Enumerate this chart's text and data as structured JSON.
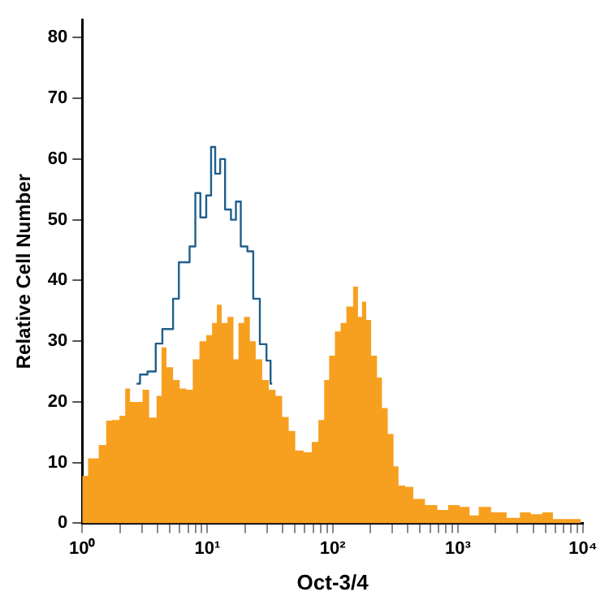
{
  "chart_data": {
    "type": "area",
    "xlabel": "Oct-3/4",
    "ylabel": "Relative Cell Number",
    "log": "x",
    "xlim": [
      1,
      10000
    ],
    "ylim": [
      0,
      83
    ],
    "xticks": [
      {
        "value": 1,
        "label": "10⁰"
      },
      {
        "value": 2,
        "label": null
      },
      {
        "value": 3,
        "label": null
      },
      {
        "value": 4,
        "label": null
      },
      {
        "value": 5,
        "label": null
      },
      {
        "value": 6,
        "label": null
      },
      {
        "value": 7,
        "label": null
      },
      {
        "value": 8,
        "label": null
      },
      {
        "value": 9,
        "label": null
      },
      {
        "value": 10,
        "label": "10¹"
      },
      {
        "value": 20,
        "label": null
      },
      {
        "value": 30,
        "label": null
      },
      {
        "value": 40,
        "label": null
      },
      {
        "value": 50,
        "label": null
      },
      {
        "value": 60,
        "label": null
      },
      {
        "value": 70,
        "label": null
      },
      {
        "value": 80,
        "label": null
      },
      {
        "value": 90,
        "label": null
      },
      {
        "value": 100,
        "label": "10²"
      },
      {
        "value": 200,
        "label": null
      },
      {
        "value": 300,
        "label": null
      },
      {
        "value": 400,
        "label": null
      },
      {
        "value": 500,
        "label": null
      },
      {
        "value": 600,
        "label": null
      },
      {
        "value": 700,
        "label": null
      },
      {
        "value": 800,
        "label": null
      },
      {
        "value": 900,
        "label": null
      },
      {
        "value": 1000,
        "label": "10³"
      },
      {
        "value": 2000,
        "label": null
      },
      {
        "value": 3000,
        "label": null
      },
      {
        "value": 4000,
        "label": null
      },
      {
        "value": 5000,
        "label": null
      },
      {
        "value": 6000,
        "label": null
      },
      {
        "value": 7000,
        "label": null
      },
      {
        "value": 8000,
        "label": null
      },
      {
        "value": 9000,
        "label": null
      },
      {
        "value": 10000,
        "label": "10⁴"
      }
    ],
    "yticks": [
      0,
      10,
      20,
      30,
      40,
      50,
      60,
      70,
      80
    ],
    "grid": false,
    "legend": false,
    "marker": "none",
    "series": [
      {
        "type": "area",
        "color": "#f7a020",
        "x": [
          1,
          1.24,
          1.48,
          1.63,
          1.84,
          2.14,
          2.27,
          2.56,
          2.9,
          3.17,
          3.69,
          4.17,
          4.43,
          5.0,
          5.65,
          6.38,
          7.2,
          8.1,
          9.2,
          10.4,
          11.4,
          12.4,
          13.6,
          15.4,
          16.9,
          18.5,
          20.8,
          22.9,
          25.8,
          29.1,
          32.9,
          37.2,
          42,
          47.3,
          53.5,
          64.1,
          72.4,
          81.8,
          89.7,
          98,
          111,
          121,
          137,
          155,
          164,
          180,
          191,
          216,
          237,
          259,
          293,
          321,
          352,
          409,
          476,
          627,
          752,
          930,
          1150,
          1340,
          1610,
          2110,
          2860,
          3440,
          4250,
          5250,
          6300,
          9640
        ],
        "values": [
          7.8,
          10.7,
          12.9,
          16.9,
          17,
          17.7,
          22.2,
          20,
          20,
          22,
          17.4,
          21,
          29,
          25.7,
          23.6,
          22.2,
          22,
          27,
          30,
          31,
          33,
          36,
          33,
          34,
          27,
          33,
          34,
          30,
          27,
          23.6,
          22,
          21,
          17.5,
          15.2,
          12,
          11.7,
          13.4,
          17,
          23.6,
          27.6,
          31.6,
          33,
          35.7,
          39,
          34,
          36.5,
          33.5,
          27.6,
          24,
          19,
          14.7,
          9.4,
          6.2,
          6,
          4,
          3,
          2.2,
          3,
          2.7,
          1.3,
          2.7,
          1.8,
          0.9,
          1.8,
          1.5,
          1.8,
          0.7,
          0.7
        ]
      },
      {
        "type": "step",
        "color": "#1f5f8b",
        "x": [
          2.72,
          3.08,
          3.58,
          4.17,
          4.57,
          5.0,
          5.65,
          6.19,
          6.78,
          7.65,
          8.38,
          9.2,
          10.4,
          11.0,
          12.1,
          13.2,
          14.5,
          16.4,
          17.4,
          19.6,
          22.2,
          24.3,
          28.3,
          31.0,
          32.9
        ],
        "values": [
          23,
          24.5,
          25,
          29.6,
          32,
          32,
          37,
          43,
          43,
          45.6,
          54.4,
          50.4,
          54,
          62,
          57.6,
          60,
          51.7,
          50,
          53,
          45.6,
          44.8,
          37,
          29.5,
          26.8,
          23
        ]
      }
    ]
  }
}
